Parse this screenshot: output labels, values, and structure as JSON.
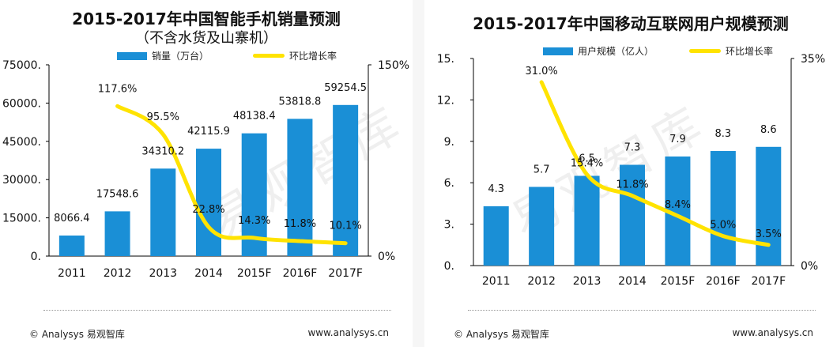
{
  "chart_data": [
    {
      "type": "bar+line",
      "title": "2015-2017年中国智能手机销量预测",
      "subtitle": "（不含水货及山寨机）",
      "legend": [
        "销量（万台）",
        "环比增长率"
      ],
      "categories": [
        "2011",
        "2012",
        "2013",
        "2014",
        "2015F",
        "2016F",
        "2017F"
      ],
      "bar_values": [
        8066.4,
        17548.6,
        34310.2,
        42115.9,
        48138.4,
        53818.8,
        59254.5
      ],
      "bar_labels": [
        "8066.4",
        "17548.6",
        "34310.2",
        "42115.9",
        "48138.4",
        "53818.8",
        "59254.5"
      ],
      "line_values": [
        null,
        117.6,
        95.5,
        22.8,
        14.3,
        11.8,
        10.1
      ],
      "line_labels": [
        "",
        "117.6%",
        "95.5%",
        "22.8%",
        "14.3%",
        "11.8%",
        "10.1%"
      ],
      "y_left_ticks": [
        "75000.",
        "60000.",
        "45000.",
        "30000.",
        "15000.",
        "0."
      ],
      "y_left_range": [
        0,
        75000
      ],
      "y_right_ticks": [
        "150%",
        "0%"
      ],
      "y_right_range": [
        0,
        150
      ]
    },
    {
      "type": "bar+line",
      "title": "2015-2017年中国移动互联网用户规模预测",
      "legend": [
        "用户规模（亿人）",
        "环比增长率"
      ],
      "categories": [
        "2011",
        "2012",
        "2013",
        "2014",
        "2015F",
        "2016F",
        "2017F"
      ],
      "bar_values": [
        4.3,
        5.7,
        6.5,
        7.3,
        7.9,
        8.3,
        8.6
      ],
      "bar_labels": [
        "4.3",
        "5.7",
        "6.5",
        "7.3",
        "7.9",
        "8.3",
        "8.6"
      ],
      "line_values": [
        null,
        31.0,
        15.4,
        11.8,
        8.4,
        5.0,
        3.5
      ],
      "line_labels": [
        "",
        "31.0%",
        "15.4%",
        "11.8%",
        "8.4%",
        "5.0%",
        "3.5%"
      ],
      "y_left_ticks": [
        "15.",
        "12.",
        "9.",
        "6.",
        "3.",
        "0."
      ],
      "y_left_range": [
        0,
        15
      ],
      "y_right_ticks": [
        "35%",
        "0%"
      ],
      "y_right_range": [
        0,
        35
      ]
    }
  ],
  "colors": {
    "bar": "#1a8fd6",
    "line": "#ffe300"
  },
  "footer": {
    "left": "© Analysys 易观智库",
    "right": "www.analysys.cn"
  },
  "watermark": "易观智库"
}
